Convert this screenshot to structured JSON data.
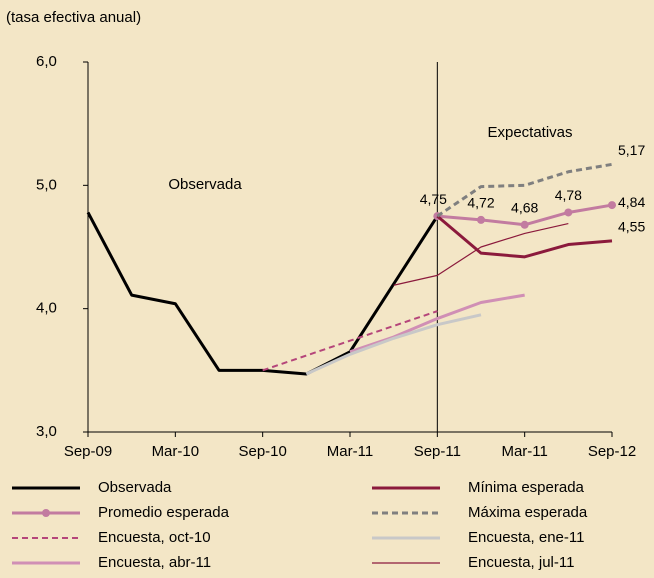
{
  "chart_data": {
    "type": "line",
    "y_label": "(tasa efectiva anual)",
    "annotations": [
      "Observada",
      "Expectativas"
    ],
    "categories": [
      "Sep-09",
      null,
      "Mar-10",
      null,
      "Sep-10",
      null,
      "Mar-11",
      null,
      "Sep-11",
      null,
      "Mar-11",
      null,
      "Sep-12"
    ],
    "ylim": [
      3,
      6
    ],
    "yticks": [
      {
        "value": 3,
        "label": "3,0"
      },
      {
        "value": 4,
        "label": "4,0"
      },
      {
        "value": 5,
        "label": "5,0"
      },
      {
        "value": 6,
        "label": "6,0"
      }
    ],
    "divider_category": "Sep-11",
    "series": [
      {
        "name": "Observada",
        "color": "#000000",
        "dash": false,
        "weight": "bold",
        "marker": false,
        "values": [
          4.78,
          4.11,
          4.04,
          3.5,
          3.5,
          3.47,
          3.65,
          4.2,
          4.75,
          null,
          null,
          null,
          null
        ]
      },
      {
        "name": "Promedio esperada",
        "color": "#c27ba0",
        "dash": false,
        "weight": "bold",
        "marker": true,
        "values": [
          null,
          null,
          null,
          null,
          null,
          null,
          null,
          null,
          4.75,
          4.72,
          4.68,
          4.78,
          4.84
        ],
        "value_labels": [
          null,
          null,
          null,
          null,
          null,
          null,
          null,
          null,
          "4,75",
          "4,72",
          "4,68",
          "4,78",
          "4,84"
        ]
      },
      {
        "name": "Encuesta, oct-10",
        "color": "#b5457a",
        "dash": true,
        "weight": "normal",
        "marker": false,
        "values": [
          null,
          null,
          null,
          null,
          3.5,
          3.62,
          3.74,
          3.86,
          3.98,
          null,
          null,
          null,
          null
        ]
      },
      {
        "name": "Encuesta, abr-11",
        "color": "#d08fb5",
        "dash": false,
        "weight": "bold",
        "marker": false,
        "values": [
          null,
          null,
          null,
          null,
          null,
          null,
          3.65,
          3.77,
          3.92,
          4.05,
          4.11,
          null,
          null
        ]
      },
      {
        "name": "Mínima esperada",
        "color": "#8b1a3c",
        "dash": false,
        "weight": "bold",
        "marker": false,
        "values": [
          null,
          null,
          null,
          null,
          null,
          null,
          null,
          null,
          4.75,
          4.45,
          4.42,
          4.52,
          4.55
        ],
        "value_labels": [
          null,
          null,
          null,
          null,
          null,
          null,
          null,
          null,
          null,
          null,
          null,
          null,
          "4,55"
        ]
      },
      {
        "name": "Máxima esperada",
        "color": "#7f7f7f",
        "dash": true,
        "weight": "bold",
        "marker": false,
        "values": [
          null,
          null,
          null,
          null,
          null,
          null,
          null,
          null,
          4.75,
          4.99,
          5.0,
          5.11,
          5.17
        ],
        "value_labels": [
          null,
          null,
          null,
          null,
          null,
          null,
          null,
          null,
          null,
          null,
          null,
          null,
          "5,17"
        ]
      },
      {
        "name": "Encuesta, ene-11",
        "color": "#c8c8c8",
        "dash": false,
        "weight": "bold",
        "marker": false,
        "values": [
          null,
          null,
          null,
          null,
          null,
          3.47,
          3.63,
          3.76,
          3.87,
          3.95,
          null,
          null,
          null
        ]
      },
      {
        "name": "Encuesta, jul-11",
        "color": "#8b1a3c",
        "dash": false,
        "weight": "thin",
        "marker": false,
        "values": [
          null,
          null,
          null,
          null,
          null,
          null,
          null,
          4.19,
          4.27,
          4.5,
          4.61,
          4.69,
          null
        ]
      }
    ]
  }
}
